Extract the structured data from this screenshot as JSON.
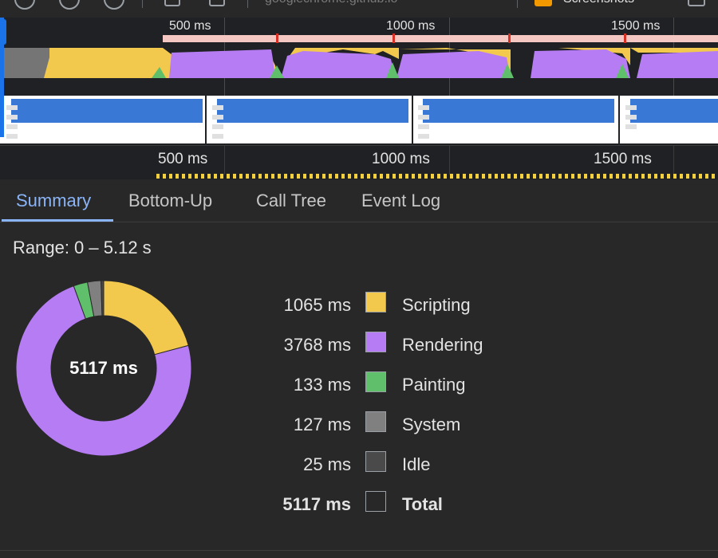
{
  "toolbar": {
    "url": "googlechrome.github.io",
    "screenshots_label": "Screenshots"
  },
  "overview": {
    "tick_labels": [
      "500 ms",
      "1000 ms",
      "1500 ms"
    ]
  },
  "ruler": {
    "tick_labels": [
      "500 ms",
      "1000 ms",
      "1500 ms"
    ]
  },
  "tabs": [
    {
      "label": "Summary",
      "active": true
    },
    {
      "label": "Bottom-Up",
      "active": false
    },
    {
      "label": "Call Tree",
      "active": false
    },
    {
      "label": "Event Log",
      "active": false
    }
  ],
  "summary": {
    "range_label": "Range: 0 – 5.12 s",
    "total_center": "5117 ms"
  },
  "chart_data": {
    "type": "pie",
    "categories": [
      "Scripting",
      "Rendering",
      "Painting",
      "System",
      "Idle"
    ],
    "values": [
      1065,
      3768,
      133,
      127,
      25
    ],
    "colors": [
      "#f2c94c",
      "#b57cf4",
      "#5fbf6a",
      "#808080",
      "#4a4a4a"
    ],
    "unit": "ms",
    "total": 5117,
    "labels": [
      "1065 ms",
      "3768 ms",
      "133 ms",
      "127 ms",
      "25 ms"
    ]
  },
  "legend": [
    {
      "value": "1065 ms",
      "label": "Scripting",
      "color": "#f2c94c"
    },
    {
      "value": "3768 ms",
      "label": "Rendering",
      "color": "#b57cf4"
    },
    {
      "value": "133 ms",
      "label": "Painting",
      "color": "#5fbf6a"
    },
    {
      "value": "127 ms",
      "label": "System",
      "color": "#808080"
    },
    {
      "value": "25 ms",
      "label": "Idle",
      "color": "#4a4a4a"
    },
    {
      "value": "5117 ms",
      "label": "Total",
      "color": "#282828"
    }
  ]
}
